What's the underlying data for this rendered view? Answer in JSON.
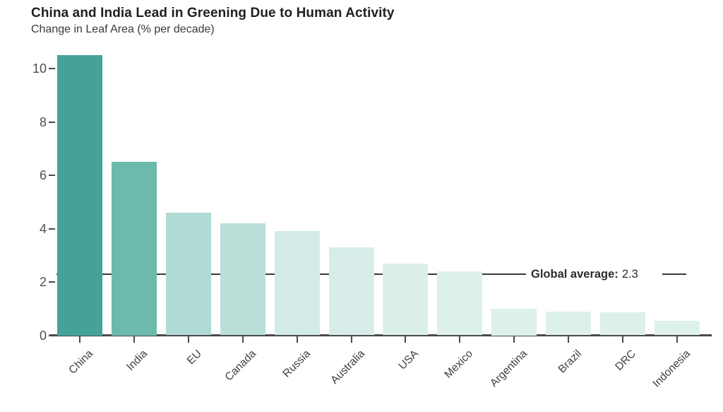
{
  "chart_data": {
    "type": "bar",
    "title": "China and India Lead in Greening Due to Human Activity",
    "subtitle": "Change in Leaf Area (% per decade)",
    "xlabel": "",
    "ylabel": "Change in Leaf Area (% per decade)",
    "categories": [
      "China",
      "India",
      "EU",
      "Canada",
      "Russia",
      "Australia",
      "USA",
      "Mexico",
      "Argentina",
      "Brazil",
      "DRC",
      "Indonesia"
    ],
    "values": [
      10.5,
      6.5,
      4.6,
      4.2,
      3.9,
      3.3,
      2.7,
      2.4,
      1.0,
      0.9,
      0.85,
      0.55
    ],
    "bar_colors": [
      "#45a29a",
      "#6bbaac",
      "#b0dbd5",
      "#b9dfd9",
      "#d3ebe6",
      "#d8ede9",
      "#dcefeb",
      "#ddf0ec",
      "#def0ec",
      "#def0ec",
      "#def0ec",
      "#dff1ed"
    ],
    "yticks": [
      0,
      2,
      4,
      6,
      8,
      10
    ],
    "ylim": [
      0,
      11
    ],
    "grid": false,
    "legend_position": "none",
    "x_label_rotation_deg": -45,
    "global_average": {
      "label": "Global average:",
      "value": "2.3",
      "y": 2.3
    },
    "colors": {
      "axis": "#4a4a4a",
      "tick_text": "#4f4f4f",
      "title_text": "#1f1f1f",
      "subtitle_text": "#3a3a3a",
      "average_line": "#3a3a3a"
    }
  }
}
